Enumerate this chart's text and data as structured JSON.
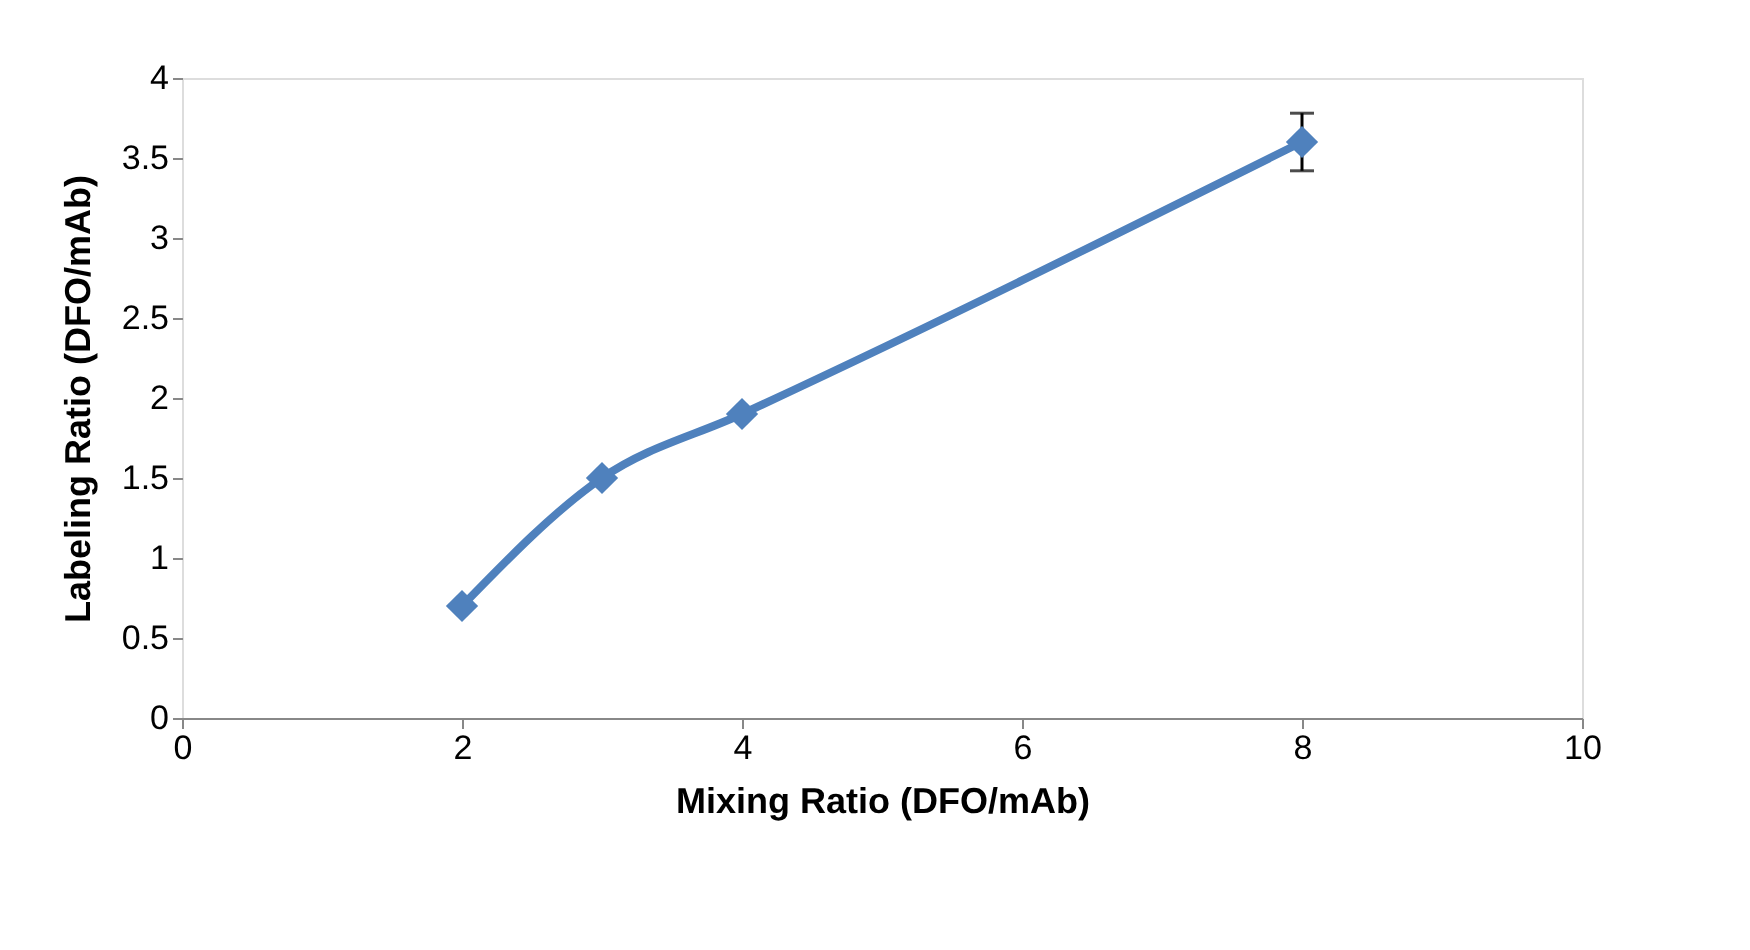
{
  "chart_data": {
    "type": "line",
    "xlabel": "Mixing Ratio (DFO/mAb)",
    "ylabel": "Labeling Ratio (DFO/mAb)",
    "x": [
      2,
      3,
      4,
      8
    ],
    "series": [
      {
        "color": "#4f81bd",
        "values": [
          0.7,
          1.5,
          1.9,
          3.6
        ],
        "errors": [
          null,
          null,
          null,
          [
            3.42,
            3.78
          ]
        ]
      }
    ],
    "xlim": [
      0,
      10
    ],
    "xticks": [
      0,
      2,
      4,
      6,
      8,
      10
    ],
    "ylim": [
      0,
      4
    ],
    "yticks": [
      0,
      0.5,
      1,
      1.5,
      2,
      2.5,
      3,
      3.5,
      4
    ],
    "grid": false,
    "marker": "diamond",
    "line_style": "solid",
    "legend": false
  }
}
